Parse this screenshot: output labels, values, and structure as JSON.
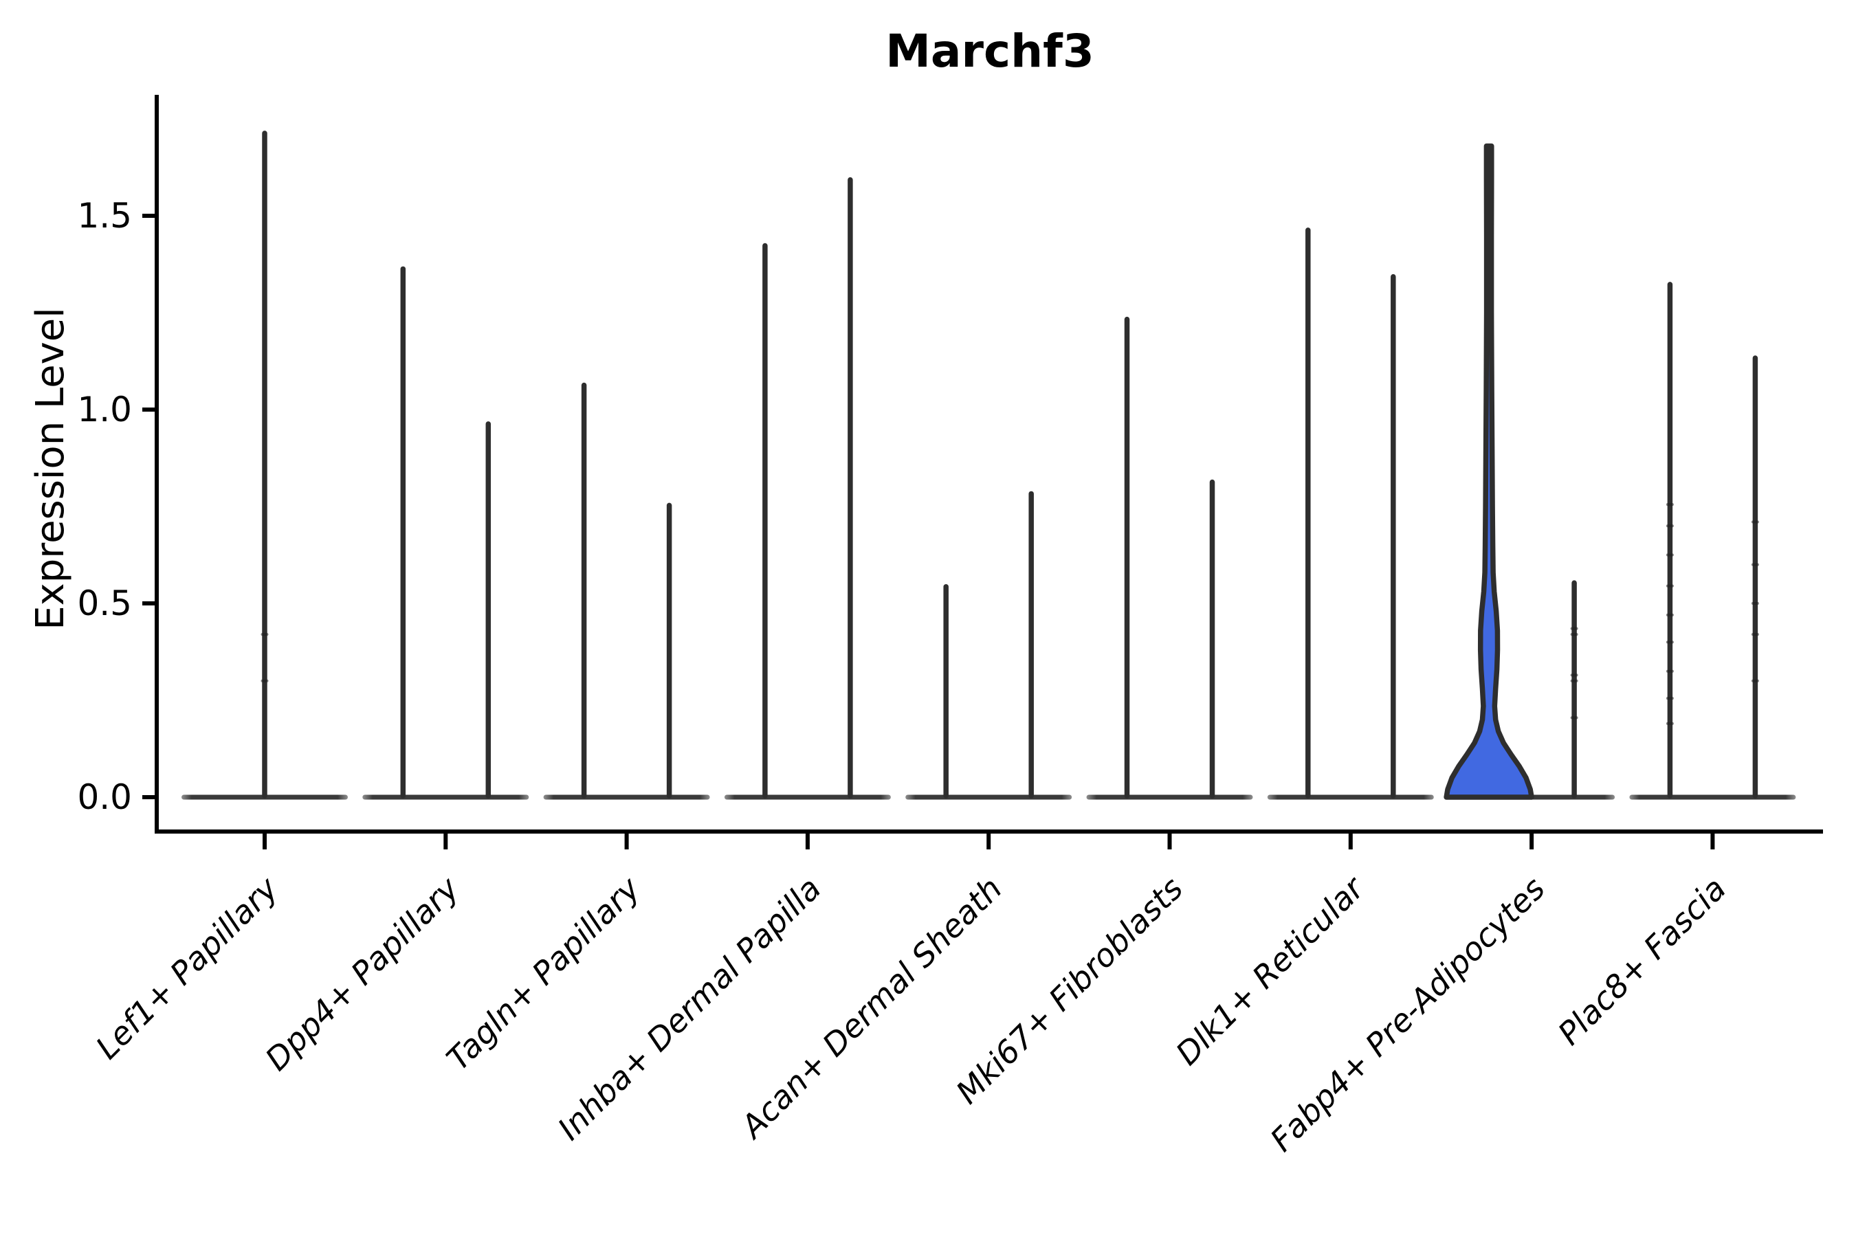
{
  "chart_data": {
    "type": "violin",
    "title": "Marchf3",
    "ylabel": "Expression Level",
    "xlabel": "",
    "yticks": [
      0.0,
      0.5,
      1.0,
      1.5
    ],
    "ylim": [
      -0.09,
      1.81
    ],
    "grid": false,
    "legend_position": "none",
    "ink_color": "#2E2E2E",
    "baseline_color": "#3A3A3A",
    "baseline_end_color": "#909090",
    "highlight_color": "#4169E1",
    "categories": [
      "Lef1+ Papillary",
      "Dpp4+ Papillary",
      "Tagln+ Papillary",
      "Inhba+ Dermal Papilla",
      "Acan+ Dermal Sheath",
      "Mki67+ Fibroblasts",
      "Dlk1+ Reticular",
      "Fabp4+ Pre-Adipocytes",
      "Plac8+ Fascia"
    ],
    "violins": [
      {
        "category": "Lef1+ Papillary",
        "side": "center",
        "max": 1.72,
        "fill": "none",
        "points": [
          0.3,
          0.42
        ]
      },
      {
        "category": "Dpp4+ Papillary",
        "side": "left",
        "max": 1.37,
        "fill": "none"
      },
      {
        "category": "Dpp4+ Papillary",
        "side": "right",
        "max": 0.97,
        "fill": "none"
      },
      {
        "category": "Tagln+ Papillary",
        "side": "left",
        "max": 1.07,
        "fill": "none"
      },
      {
        "category": "Tagln+ Papillary",
        "side": "right",
        "max": 0.76,
        "fill": "none"
      },
      {
        "category": "Inhba+ Dermal Papilla",
        "side": "left",
        "max": 1.43,
        "fill": "none"
      },
      {
        "category": "Inhba+ Dermal Papilla",
        "side": "right",
        "max": 1.6,
        "fill": "none"
      },
      {
        "category": "Acan+ Dermal Sheath",
        "side": "left",
        "max": 0.55,
        "fill": "none"
      },
      {
        "category": "Acan+ Dermal Sheath",
        "side": "right",
        "max": 0.79,
        "fill": "none"
      },
      {
        "category": "Mki67+ Fibroblasts",
        "side": "left",
        "max": 1.24,
        "fill": "none"
      },
      {
        "category": "Mki67+ Fibroblasts",
        "side": "right",
        "max": 0.82,
        "fill": "none"
      },
      {
        "category": "Dlk1+ Reticular",
        "side": "left",
        "max": 1.47,
        "fill": "none"
      },
      {
        "category": "Dlk1+ Reticular",
        "side": "right",
        "max": 1.35,
        "fill": "none"
      },
      {
        "category": "Fabp4+ Pre-Adipocytes",
        "side": "left",
        "max": 1.68,
        "fill": "#4169E1",
        "body_profile": [
          [
            0.0,
            1.0
          ],
          [
            0.02,
            0.97
          ],
          [
            0.05,
            0.87
          ],
          [
            0.08,
            0.71
          ],
          [
            0.11,
            0.52
          ],
          [
            0.14,
            0.34
          ],
          [
            0.17,
            0.22
          ],
          [
            0.2,
            0.155
          ],
          [
            0.235,
            0.132
          ],
          [
            0.28,
            0.155
          ],
          [
            0.33,
            0.185
          ],
          [
            0.38,
            0.2
          ],
          [
            0.43,
            0.198
          ],
          [
            0.48,
            0.17
          ],
          [
            0.53,
            0.122
          ],
          [
            0.58,
            0.097
          ],
          [
            0.65,
            0.089
          ],
          [
            0.75,
            0.081
          ],
          [
            0.9,
            0.073
          ],
          [
            1.05,
            0.065
          ],
          [
            1.25,
            0.057
          ],
          [
            1.45,
            0.057
          ],
          [
            1.6,
            0.06
          ],
          [
            1.68,
            0.06
          ]
        ]
      },
      {
        "category": "Fabp4+ Pre-Adipocytes",
        "side": "right",
        "max": 0.56,
        "fill": "none",
        "points": [
          0.205,
          0.3,
          0.315,
          0.42,
          0.435
        ]
      },
      {
        "category": "Plac8+ Fascia",
        "side": "left",
        "max": 1.33,
        "fill": "none",
        "points": [
          0.19,
          0.255,
          0.325,
          0.4,
          0.47,
          0.545,
          0.625,
          0.7,
          0.755
        ]
      },
      {
        "category": "Plac8+ Fascia",
        "side": "right",
        "max": 1.14,
        "fill": "none",
        "points": [
          0.3,
          0.42,
          0.5,
          0.6,
          0.71
        ]
      }
    ]
  }
}
